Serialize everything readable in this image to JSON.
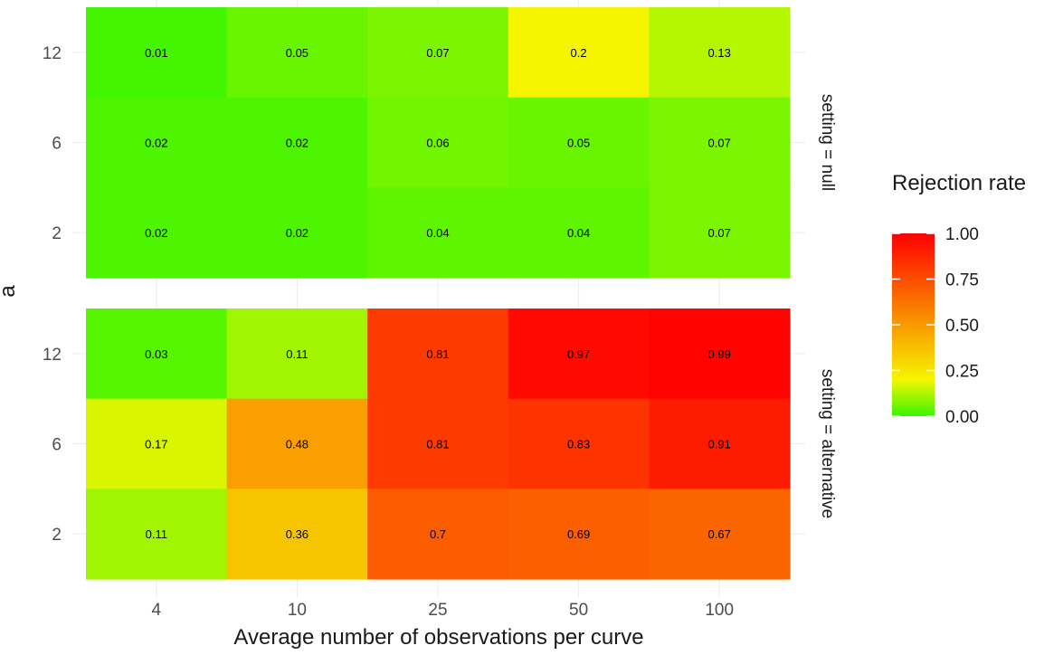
{
  "chart_data": {
    "type": "heatmap",
    "xlabel": "Average number of observations per curve",
    "ylabel": "a",
    "x_categories": [
      "4",
      "10",
      "25",
      "50",
      "100"
    ],
    "y_categories": [
      "2",
      "6",
      "12"
    ],
    "facet_variable": "setting",
    "facets": [
      {
        "label": "setting = null",
        "setting": "null",
        "rows": [
          {
            "a": "12",
            "values": [
              0.01,
              0.05,
              0.07,
              0.2,
              0.13
            ],
            "labels": [
              "0.01",
              "0.05",
              "0.07",
              "0.2",
              "0.13"
            ]
          },
          {
            "a": "6",
            "values": [
              0.02,
              0.02,
              0.06,
              0.05,
              0.07
            ],
            "labels": [
              "0.02",
              "0.02",
              "0.06",
              "0.05",
              "0.07"
            ]
          },
          {
            "a": "2",
            "values": [
              0.02,
              0.02,
              0.04,
              0.04,
              0.07
            ],
            "labels": [
              "0.02",
              "0.02",
              "0.04",
              "0.04",
              "0.07"
            ]
          }
        ]
      },
      {
        "label": "setting = alternative",
        "setting": "alternative",
        "rows": [
          {
            "a": "12",
            "values": [
              0.03,
              0.11,
              0.81,
              0.97,
              0.99
            ],
            "labels": [
              "0.03",
              "0.11",
              "0.81",
              "0.97",
              "0.99"
            ]
          },
          {
            "a": "6",
            "values": [
              0.17,
              0.48,
              0.81,
              0.83,
              0.91
            ],
            "labels": [
              "0.17",
              "0.48",
              "0.81",
              "0.83",
              "0.91"
            ]
          },
          {
            "a": "2",
            "values": [
              0.11,
              0.36,
              0.7,
              0.69,
              0.67
            ],
            "labels": [
              "0.11",
              "0.36",
              "0.7",
              "0.69",
              "0.67"
            ]
          }
        ]
      }
    ],
    "legend": {
      "title": "Rejection rate",
      "position": "right",
      "breaks": [
        0.0,
        0.25,
        0.5,
        0.75,
        1.0
      ],
      "break_labels": [
        "0.00",
        "0.25",
        "0.50",
        "0.75",
        "1.00"
      ],
      "limits": [
        0,
        1
      ]
    },
    "colors": {
      "low": "#3af500",
      "mid": "#f5f500",
      "high": "#ff0000",
      "grid": "#ebebeb",
      "background": "#ffffff"
    },
    "grid": true
  }
}
